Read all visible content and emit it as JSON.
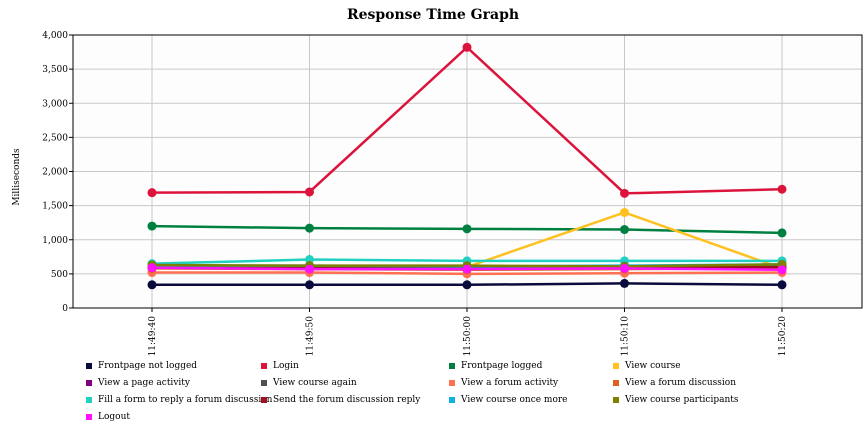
{
  "chart_data": {
    "type": "line",
    "title": "Response Time Graph",
    "xlabel": "",
    "ylabel": "Milliseconds",
    "ylim": [
      0,
      4000
    ],
    "yticks": [
      "0",
      "500",
      "1,000",
      "1,500",
      "2,000",
      "2,500",
      "3,000",
      "3,500",
      "4,000"
    ],
    "x": [
      "11:49:40",
      "11:49:50",
      "11:50:00",
      "11:50:10",
      "11:50:20"
    ],
    "grid": true,
    "legend_position": "bottom",
    "series": [
      {
        "name": "Frontpage not logged",
        "color": "#0a0a3c",
        "values": [
          340,
          340,
          340,
          360,
          340
        ]
      },
      {
        "name": "Login",
        "color": "#dc143c",
        "values": [
          1690,
          1700,
          3820,
          1680,
          1740
        ]
      },
      {
        "name": "Frontpage logged",
        "color": "#008040",
        "values": [
          1200,
          1170,
          1160,
          1150,
          1100
        ]
      },
      {
        "name": "View course",
        "color": "#ffc020",
        "values": [
          600,
          600,
          600,
          1400,
          580
        ]
      },
      {
        "name": "View a page activity",
        "color": "#800080",
        "values": [
          600,
          580,
          570,
          580,
          590
        ]
      },
      {
        "name": "View course again",
        "color": "#505050",
        "values": [
          610,
          600,
          590,
          600,
          620
        ]
      },
      {
        "name": "View a forum activity",
        "color": "#ff7050",
        "values": [
          520,
          520,
          500,
          510,
          520
        ]
      },
      {
        "name": "View a forum discussion",
        "color": "#e06020",
        "values": [
          580,
          570,
          560,
          570,
          580
        ]
      },
      {
        "name": "Fill a form to reply a forum discussion",
        "color": "#20d0c0",
        "values": [
          650,
          710,
          690,
          690,
          690
        ]
      },
      {
        "name": "Send the forum discussion reply",
        "color": "#a01020",
        "values": [
          590,
          580,
          580,
          590,
          600
        ]
      },
      {
        "name": "View course once more",
        "color": "#10b0e0",
        "values": [
          620,
          620,
          610,
          620,
          640
        ]
      },
      {
        "name": "View course participants",
        "color": "#808000",
        "values": [
          630,
          620,
          620,
          610,
          640
        ]
      },
      {
        "name": "Logout",
        "color": "#ff10ff",
        "values": [
          590,
          570,
          570,
          580,
          560
        ]
      }
    ]
  }
}
